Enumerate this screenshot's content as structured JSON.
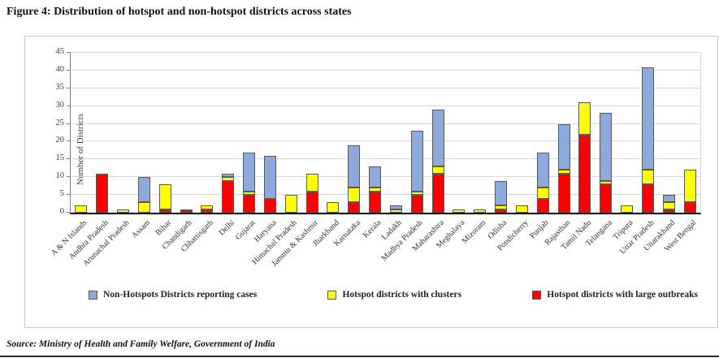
{
  "figure": {
    "title": "Figure 4: Distribution of hotspot and non-hotspot districts across states",
    "source": "Source: Ministry of Health and Family Welfare, Government of India"
  },
  "chart_data": {
    "type": "bar",
    "stacked": true,
    "title": "Figure 4: Distribution of hotspot and non-hotspot districts across states",
    "xlabel": "",
    "ylabel": "Number of Districts",
    "ylim": [
      0,
      45
    ],
    "yticks": [
      0,
      5,
      10,
      15,
      20,
      25,
      30,
      35,
      40,
      45
    ],
    "grid": true,
    "legend_position": "bottom",
    "categories": [
      "A & N Islands",
      "Andhra Pradesh",
      "Arunachal Pradesh",
      "Assam",
      "Bihar",
      "Chandigarh",
      "Chhattisgarh",
      "Delhi",
      "Gujarat",
      "Haryana",
      "Himachal Pradesh",
      "Jammu & Kashmir",
      "Jharkhand",
      "Karnataka",
      "Kerala",
      "Ladakh",
      "Madhya Pradesh",
      "Maharashtra",
      "Meghalaya",
      "Mizoram",
      "Odisha",
      "Pondicherry",
      "Punjab",
      "Rajasthan",
      "Tamil Nadu",
      "Telangana",
      "Tripura",
      "Uttar Pradesh",
      "Uttarakhand",
      "West Bengal"
    ],
    "series": [
      {
        "name": "Hotspot districts with large outbreaks",
        "color": "#FF0000",
        "values": [
          0,
          11,
          0,
          0,
          1,
          1,
          1,
          9,
          5,
          4,
          0,
          6,
          0,
          3,
          6,
          0,
          5,
          11,
          0,
          0,
          1,
          0,
          4,
          11,
          22,
          8,
          0,
          8,
          1,
          3
        ]
      },
      {
        "name": "Hotspot districts with clusters",
        "color": "#FFFF00",
        "values": [
          2,
          0,
          1,
          3,
          7,
          0,
          1,
          1,
          1,
          0,
          5,
          5,
          3,
          4,
          1,
          1,
          1,
          2,
          1,
          1,
          1,
          2,
          3,
          1,
          9,
          1,
          2,
          4,
          2,
          9
        ]
      },
      {
        "name": "Non-Hotspots Districts reporting cases",
        "color": "#8EA9DB",
        "values": [
          0,
          0,
          0,
          7,
          0,
          0,
          0,
          1,
          11,
          12,
          0,
          0,
          0,
          12,
          6,
          1,
          17,
          16,
          0,
          0,
          7,
          0,
          10,
          13,
          0,
          19,
          0,
          29,
          2,
          0
        ]
      }
    ],
    "stack_order_bottom_to_top": [
      "Hotspot districts with large outbreaks",
      "Hotspot districts with clusters",
      "Non-Hotspots Districts reporting cases"
    ],
    "legend_order": [
      "Non-Hotspots Districts reporting cases",
      "Hotspot districts with clusters",
      "Hotspot districts with large outbreaks"
    ]
  }
}
